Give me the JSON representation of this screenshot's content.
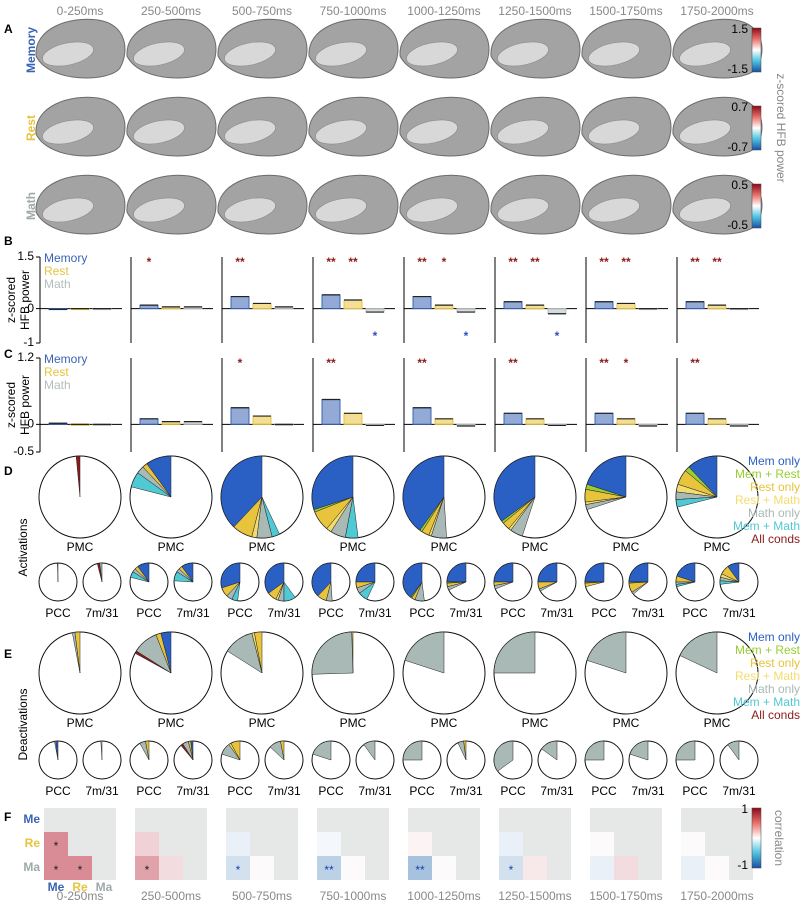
{
  "windows": [
    "0-250ms",
    "250-500ms",
    "500-750ms",
    "750-1000ms",
    "1000-1250ms",
    "1250-1500ms",
    "1500-1750ms",
    "1750-2000ms"
  ],
  "panel_a": {
    "letter": "A",
    "cbar_label": "z-scored HFB power",
    "rows": [
      {
        "name": "Memory",
        "color": "#3a64b4",
        "cbar_ticks": [
          1.5,
          -1.5
        ]
      },
      {
        "name": "Rest",
        "color": "#e8c33c",
        "cbar_ticks": [
          0.7,
          -0.7
        ]
      },
      {
        "name": "Math",
        "color": "#9fa9a9",
        "cbar_ticks": [
          0.5,
          -0.5
        ]
      }
    ]
  },
  "panel_b": {
    "letter": "B",
    "ylabel": [
      "z-scored",
      "HFB power"
    ],
    "ylim": [
      -1,
      1.5
    ],
    "yticks": [
      1.5,
      0,
      -1
    ],
    "series": [
      {
        "name": "Memory",
        "color": "#3a64b4",
        "values": [
          -0.02,
          0.1,
          0.35,
          0.4,
          0.35,
          0.2,
          0.2,
          0.2
        ]
      },
      {
        "name": "Rest",
        "color": "#e8c33c",
        "values": [
          0,
          0.05,
          0.15,
          0.25,
          0.1,
          0.1,
          0.15,
          0.1
        ]
      },
      {
        "name": "Math",
        "color": "#b5bdbd",
        "values": [
          0,
          0.05,
          0.05,
          -0.1,
          -0.1,
          -0.15,
          0,
          0
        ]
      }
    ],
    "stars_above": [
      [
        null,
        null
      ],
      [
        "*",
        null
      ],
      [
        "**",
        null
      ],
      [
        "**",
        "**"
      ],
      [
        "**",
        "*"
      ],
      [
        "**",
        "**"
      ],
      [
        "**",
        "**"
      ],
      [
        "**",
        "**"
      ]
    ],
    "stars_below": [
      null,
      null,
      null,
      "*",
      "*",
      "*",
      null,
      null
    ]
  },
  "panel_c": {
    "letter": "C",
    "ylabel": [
      "z-scored",
      "HFB power"
    ],
    "ylim": [
      -0.5,
      1.2
    ],
    "yticks": [
      1.2,
      0,
      -0.5
    ],
    "series": [
      {
        "name": "Memory",
        "color": "#3a64b4",
        "values": [
          0.02,
          0.1,
          0.3,
          0.45,
          0.3,
          0.2,
          0.2,
          0.2
        ]
      },
      {
        "name": "Rest",
        "color": "#e8c33c",
        "values": [
          0,
          0.05,
          0.15,
          0.2,
          0.1,
          0.1,
          0.1,
          0.1
        ]
      },
      {
        "name": "Math",
        "color": "#b5bdbd",
        "values": [
          0,
          0.05,
          0,
          -0.02,
          -0.03,
          -0.02,
          -0.03,
          -0.03
        ]
      }
    ],
    "stars_above": [
      [
        null,
        null
      ],
      [
        null,
        null
      ],
      [
        "*",
        null
      ],
      [
        "**",
        null
      ],
      [
        "**",
        null
      ],
      [
        "**",
        null
      ],
      [
        "**",
        "*"
      ],
      [
        "**",
        null
      ]
    ],
    "stars_below": [
      null,
      null,
      null,
      null,
      null,
      null,
      null,
      null
    ]
  },
  "pie_categories": [
    "Mem only",
    "Mem + Rest",
    "Rest only",
    "Rest + Math",
    "Math only",
    "Mem + Math",
    "All conds"
  ],
  "pie_colors": [
    "#2a5fc4",
    "#9acd32",
    "#e8c33c",
    "#f3dc6e",
    "#a9bab6",
    "#4fc9d4",
    "#8b1a1a"
  ],
  "pie_labels": [
    "PMC",
    "PCC",
    "7m/31"
  ],
  "panel_d": {
    "letter": "D",
    "label": "Activations",
    "pies": [
      [
        [
          0,
          0,
          0,
          0,
          0,
          0,
          1.5
        ],
        [
          0,
          0,
          0,
          0,
          0,
          0,
          0.5
        ],
        [
          0,
          0,
          0,
          0,
          2,
          0,
          2
        ]
      ],
      [
        [
          10,
          0,
          2,
          0,
          3,
          6,
          0
        ],
        [
          10,
          0,
          3,
          0,
          3,
          5,
          0
        ],
        [
          10,
          0,
          3,
          0,
          3,
          8,
          0
        ]
      ],
      [
        [
          38,
          0,
          8,
          2,
          6,
          3,
          0
        ],
        [
          30,
          0,
          8,
          0,
          5,
          5,
          0
        ],
        [
          35,
          0,
          8,
          2,
          5,
          10,
          0
        ]
      ],
      [
        [
          30,
          1,
          8,
          2,
          6,
          5,
          0
        ],
        [
          38,
          0,
          8,
          0,
          5,
          0,
          0
        ],
        [
          25,
          0,
          5,
          0,
          5,
          8,
          0
        ]
      ],
      [
        [
          40,
          1,
          3,
          1,
          6,
          0,
          0
        ],
        [
          40,
          1,
          3,
          0,
          8,
          0,
          0
        ],
        [
          25,
          1,
          3,
          0,
          3,
          0,
          0
        ]
      ],
      [
        [
          35,
          1,
          3,
          1,
          5,
          0,
          0
        ],
        [
          25,
          0,
          3,
          0,
          3,
          0,
          0
        ],
        [
          25,
          0,
          6,
          0,
          2,
          0,
          0
        ]
      ],
      [
        [
          20,
          2,
          5,
          1,
          2,
          0,
          0
        ],
        [
          25,
          1,
          3,
          0,
          0,
          0,
          0
        ],
        [
          25,
          1,
          8,
          0,
          2,
          0,
          0
        ]
      ],
      [
        [
          12,
          2,
          6,
          3,
          3,
          3,
          0
        ],
        [
          20,
          0,
          5,
          0,
          2,
          2,
          0
        ],
        [
          10,
          0,
          8,
          3,
          3,
          3,
          0
        ]
      ]
    ]
  },
  "panel_e": {
    "letter": "E",
    "label": "Deactivations",
    "pies": [
      [
        [
          0,
          0,
          2,
          0,
          1,
          0,
          0
        ],
        [
          2,
          0,
          0,
          0,
          1,
          0,
          0
        ],
        [
          0,
          0,
          0,
          0,
          1,
          0,
          0
        ]
      ],
      [
        [
          4,
          0,
          2,
          0,
          10,
          0,
          1
        ],
        [
          0,
          0,
          3,
          0,
          5,
          0,
          0
        ],
        [
          2,
          0,
          2,
          0,
          5,
          0,
          2
        ]
      ],
      [
        [
          0,
          0,
          3,
          1,
          12,
          0,
          0
        ],
        [
          0,
          0,
          8,
          2,
          10,
          0,
          0
        ],
        [
          0,
          0,
          3,
          0,
          10,
          0,
          0
        ]
      ],
      [
        [
          0,
          0,
          0.5,
          0,
          25,
          0,
          0
        ],
        [
          0,
          0,
          0,
          0,
          20,
          0,
          0
        ],
        [
          0,
          0,
          0,
          0,
          10,
          0,
          0
        ]
      ],
      [
        [
          0,
          0,
          0,
          0,
          20,
          0,
          0
        ],
        [
          0,
          0,
          0,
          0,
          25,
          0,
          0
        ],
        [
          0,
          0,
          2,
          0,
          5,
          0,
          0
        ]
      ],
      [
        [
          0,
          0,
          0,
          0,
          25,
          0,
          0
        ],
        [
          0,
          0,
          0,
          0,
          35,
          0,
          0
        ],
        [
          0,
          0,
          0,
          0,
          15,
          0,
          0
        ]
      ],
      [
        [
          0,
          0,
          0,
          0,
          20,
          0,
          0
        ],
        [
          0,
          0,
          0,
          0,
          25,
          0,
          0
        ],
        [
          0,
          0,
          0,
          0,
          20,
          0,
          0
        ]
      ],
      [
        [
          0,
          0,
          0,
          0,
          18,
          0,
          0
        ],
        [
          0,
          0,
          0,
          0,
          25,
          0,
          0
        ],
        [
          0,
          0,
          0,
          0,
          10,
          0,
          0
        ]
      ]
    ]
  },
  "panel_f": {
    "letter": "F",
    "labels": [
      "Me",
      "Re",
      "Ma"
    ],
    "clim": [
      -1,
      1
    ],
    "cbar_ticks": [
      1,
      -1
    ],
    "cbar_label": "correlation",
    "values": [
      [
        0.5,
        0.5,
        0.5
      ],
      [
        0.2,
        0.4,
        0.15
      ],
      [
        -0.1,
        -0.2,
        0.02
      ],
      [
        -0.05,
        -0.3,
        0.02
      ],
      [
        0.05,
        -0.4,
        0.02
      ],
      [
        -0.1,
        -0.2,
        0.1
      ],
      [
        0.02,
        -0.1,
        0.15
      ],
      [
        0.02,
        -0.1,
        0.02
      ]
    ],
    "stars": [
      [
        "*",
        "*",
        "*"
      ],
      [
        null,
        "*",
        null
      ],
      [
        null,
        "*",
        null
      ],
      [
        null,
        "**",
        null
      ],
      [
        null,
        "**",
        null
      ],
      [
        null,
        "*",
        null
      ],
      [
        null,
        null,
        null
      ],
      [
        null,
        null,
        null
      ]
    ]
  }
}
